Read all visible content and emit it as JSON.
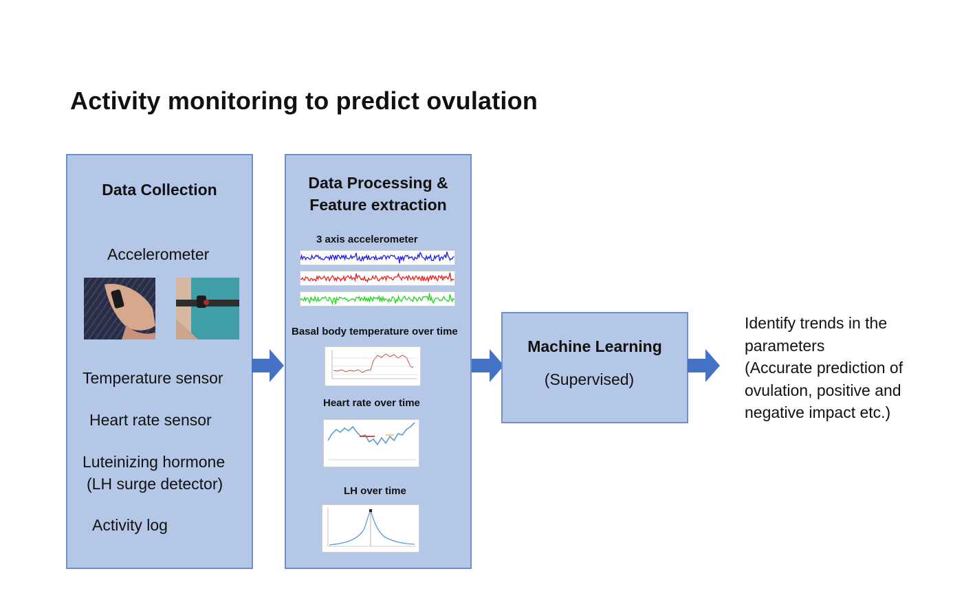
{
  "title": "Activity monitoring to predict ovulation",
  "colors": {
    "box_fill": "#b4c7e7",
    "box_border": "#6f8fca",
    "arrow": "#4472c4"
  },
  "data_collection": {
    "header": "Data Collection",
    "accelerometer": "Accelerometer",
    "temperature": "Temperature sensor",
    "heart_rate": "Heart rate sensor",
    "lh_line1": "Luteinizing hormone",
    "lh_line2": "(LH surge detector)",
    "activity": "Activity log"
  },
  "processing": {
    "header_line1": "Data Processing &",
    "header_line2": "Feature extraction",
    "accel_label": "3 axis  accelerometer",
    "bbt_label": "Basal body temperature over time",
    "hr_label": "Heart rate over time",
    "lh_label": "LH over time"
  },
  "ml": {
    "title": "Machine Learning",
    "subtitle": "(Supervised)"
  },
  "outcome": {
    "lines": [
      "Identify trends in the",
      "parameters",
      "(Accurate prediction of",
      "ovulation, positive and",
      "negative impact etc.)"
    ]
  }
}
